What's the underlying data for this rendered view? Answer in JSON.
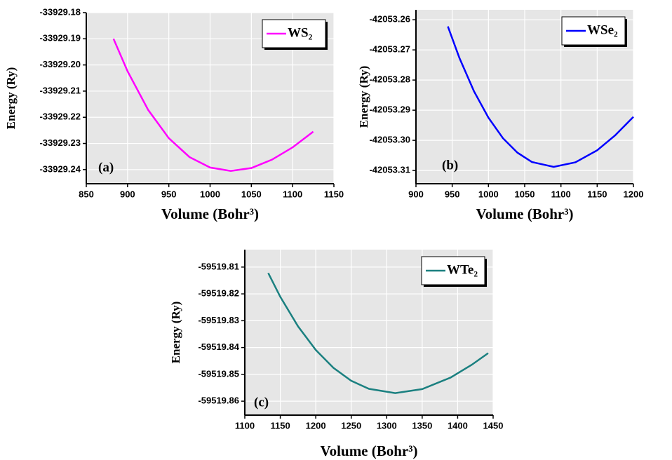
{
  "chart_data": [
    {
      "type": "line",
      "panel_label": "(a)",
      "x_label": "Volume (Bohr³)",
      "y_label": "Energy (Ry)",
      "x": [
        883,
        900,
        925,
        950,
        975,
        1000,
        1025,
        1050,
        1075,
        1100,
        1125
      ],
      "series": [
        {
          "name": "WS₂",
          "color": "#ff00ff",
          "values": [
            -33929.19,
            -33929.2024,
            -33929.2172,
            -33929.228,
            -33929.2352,
            -33929.2392,
            -33929.2405,
            -33929.2394,
            -33929.2362,
            -33929.2315,
            -33929.2255
          ]
        }
      ],
      "xlim": [
        850,
        1150
      ],
      "xticks": [
        850,
        900,
        950,
        1000,
        1050,
        1100,
        1150
      ],
      "ylim": [
        -33929.2454,
        -33929.18
      ],
      "yticks": [
        -33929.24,
        -33929.23,
        -33929.22,
        -33929.21,
        {
          "value": -33929.2,
          "label": "-33929.20"
        },
        -33929.19,
        -33929.18
      ],
      "grid": true,
      "legend": "top-right"
    },
    {
      "type": "line",
      "panel_label": "(b)",
      "x_label": "Volume (Bohr³)",
      "y_label": "Energy (Ry)",
      "x": [
        944,
        960,
        980,
        1000,
        1020,
        1040,
        1060,
        1090,
        1120,
        1150,
        1175,
        1200
      ],
      "series": [
        {
          "name": "WSe₂",
          "color": "#0000ff",
          "values": [
            -42053.2622,
            -42053.2727,
            -42053.2837,
            -42053.2925,
            -42053.2993,
            -42053.3041,
            -42053.3072,
            -42053.3088,
            -42053.3073,
            -42053.3033,
            -42053.2983,
            -42053.2922
          ]
        }
      ],
      "xlim": [
        900,
        1200
      ],
      "xticks": [
        900,
        950,
        1000,
        1050,
        1100,
        1150,
        1200
      ],
      "ylim": [
        -42053.3144,
        -42053.2567
      ],
      "yticks": [
        -42053.31,
        {
          "value": -42053.3,
          "label": "-42053.30"
        },
        -42053.29,
        -42053.28,
        -42053.27,
        -42053.26
      ],
      "grid": true,
      "legend": "top-right"
    },
    {
      "type": "line",
      "panel_label": "(c)",
      "x_label": "Volume (Bohr³)",
      "y_label": "Energy (Ry)",
      "x": [
        1133,
        1150,
        1175,
        1200,
        1225,
        1250,
        1275,
        1312,
        1350,
        1390,
        1420,
        1443
      ],
      "series": [
        {
          "name": "WTe₂",
          "color": "#1b8080",
          "values": [
            -59519.8122,
            -59519.8211,
            -59519.8321,
            -59519.8409,
            -59519.8476,
            -59519.8524,
            -59519.8554,
            -59519.857,
            -59519.8555,
            -59519.8512,
            -59519.8464,
            -59519.8421
          ]
        }
      ],
      "xlim": [
        1100,
        1450
      ],
      "xticks": [
        1100,
        1150,
        1200,
        1250,
        1300,
        1350,
        1400,
        1450
      ],
      "ylim": [
        -59519.8652,
        -59519.8035
      ],
      "yticks": [
        -59519.86,
        -59519.85,
        -59519.84,
        -59519.83,
        -59519.82,
        -59519.81
      ],
      "grid": true,
      "legend": "top-right"
    }
  ]
}
